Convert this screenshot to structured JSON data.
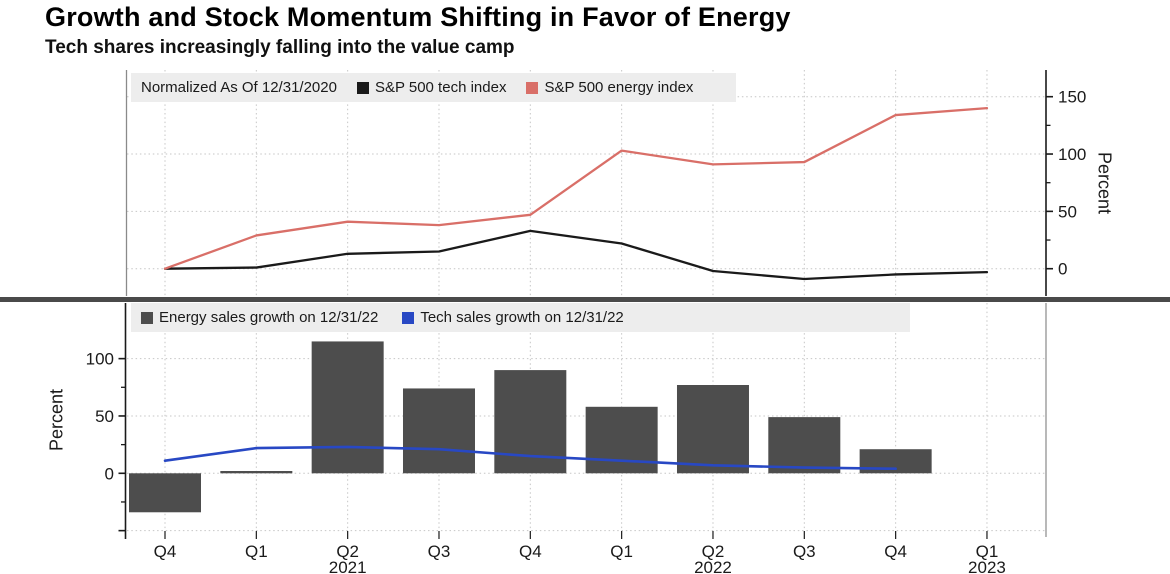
{
  "title": "Growth and Stock Momentum Shifting in Favor of Energy",
  "subtitle": "Tech shares increasingly falling into the value camp",
  "colors": {
    "tech_index_line": "#1a1a1a",
    "energy_index_line": "#d96f68",
    "energy_bars": "#4d4d4d",
    "tech_sales_line": "#2848c4",
    "legend_bg": "#ededed",
    "grid": "#c6c6c6",
    "axis": "#1a1a1a",
    "frame_border": "#8a8a8a",
    "divider": "#4a4a4a",
    "text": "#1a1a1a"
  },
  "chart_data": [
    {
      "type": "line",
      "panel": "top",
      "note": "Normalized As Of 12/31/2020",
      "categories": [
        "Q4",
        "Q1",
        "Q2",
        "Q3",
        "Q4",
        "Q1",
        "Q2",
        "Q3",
        "Q4",
        "Q1"
      ],
      "year_labels": [
        {
          "index": 2,
          "label": "2021"
        },
        {
          "index": 6,
          "label": "2022"
        },
        {
          "index": 9,
          "label": "2023"
        }
      ],
      "series": [
        {
          "name": "S&P 500 tech index",
          "color": "#1a1a1a",
          "values": [
            0,
            1,
            13,
            15,
            33,
            22,
            -2,
            -9,
            -5,
            -3
          ]
        },
        {
          "name": "S&P 500 energy index",
          "color": "#d96f68",
          "values": [
            0,
            29,
            41,
            38,
            47,
            103,
            91,
            93,
            134,
            140
          ]
        }
      ],
      "ylabel": "Percent",
      "yaxis": {
        "side": "right",
        "labeled_ticks": [
          0,
          50,
          100,
          150
        ],
        "minor_ticks": [
          25,
          75,
          125
        ],
        "unlabeled_major_ticks": []
      },
      "ylim": [
        -24,
        173
      ],
      "grid_values": [
        0,
        50,
        100,
        150
      ],
      "grid": true,
      "legend_position": "top-left"
    },
    {
      "type": "bar+line",
      "panel": "bottom",
      "categories": [
        "Q4",
        "Q1",
        "Q2",
        "Q3",
        "Q4",
        "Q1",
        "Q2",
        "Q3",
        "Q4",
        "Q1"
      ],
      "year_labels": [
        {
          "index": 2,
          "label": "2021"
        },
        {
          "index": 6,
          "label": "2022"
        },
        {
          "index": 9,
          "label": "2023"
        }
      ],
      "series": [
        {
          "name": "Energy sales growth on 12/31/22",
          "type": "bar",
          "color": "#4d4d4d",
          "values": [
            -34,
            2,
            115,
            74,
            90,
            58,
            77,
            49,
            21,
            null
          ]
        },
        {
          "name": "Tech sales growth on 12/31/22",
          "type": "line",
          "color": "#2848c4",
          "values": [
            11,
            22,
            23,
            21,
            15,
            11,
            7,
            5,
            4,
            null
          ]
        }
      ],
      "ylabel": "Percent",
      "yaxis": {
        "side": "left",
        "labeled_ticks": [
          0,
          50,
          100
        ],
        "minor_ticks": [
          -25,
          25,
          75
        ],
        "unlabeled_major_ticks": [
          -50
        ]
      },
      "ylim": [
        -56,
        148
      ],
      "grid_values": [
        -50,
        0,
        50,
        100
      ],
      "grid": true,
      "legend_position": "top-left"
    }
  ]
}
